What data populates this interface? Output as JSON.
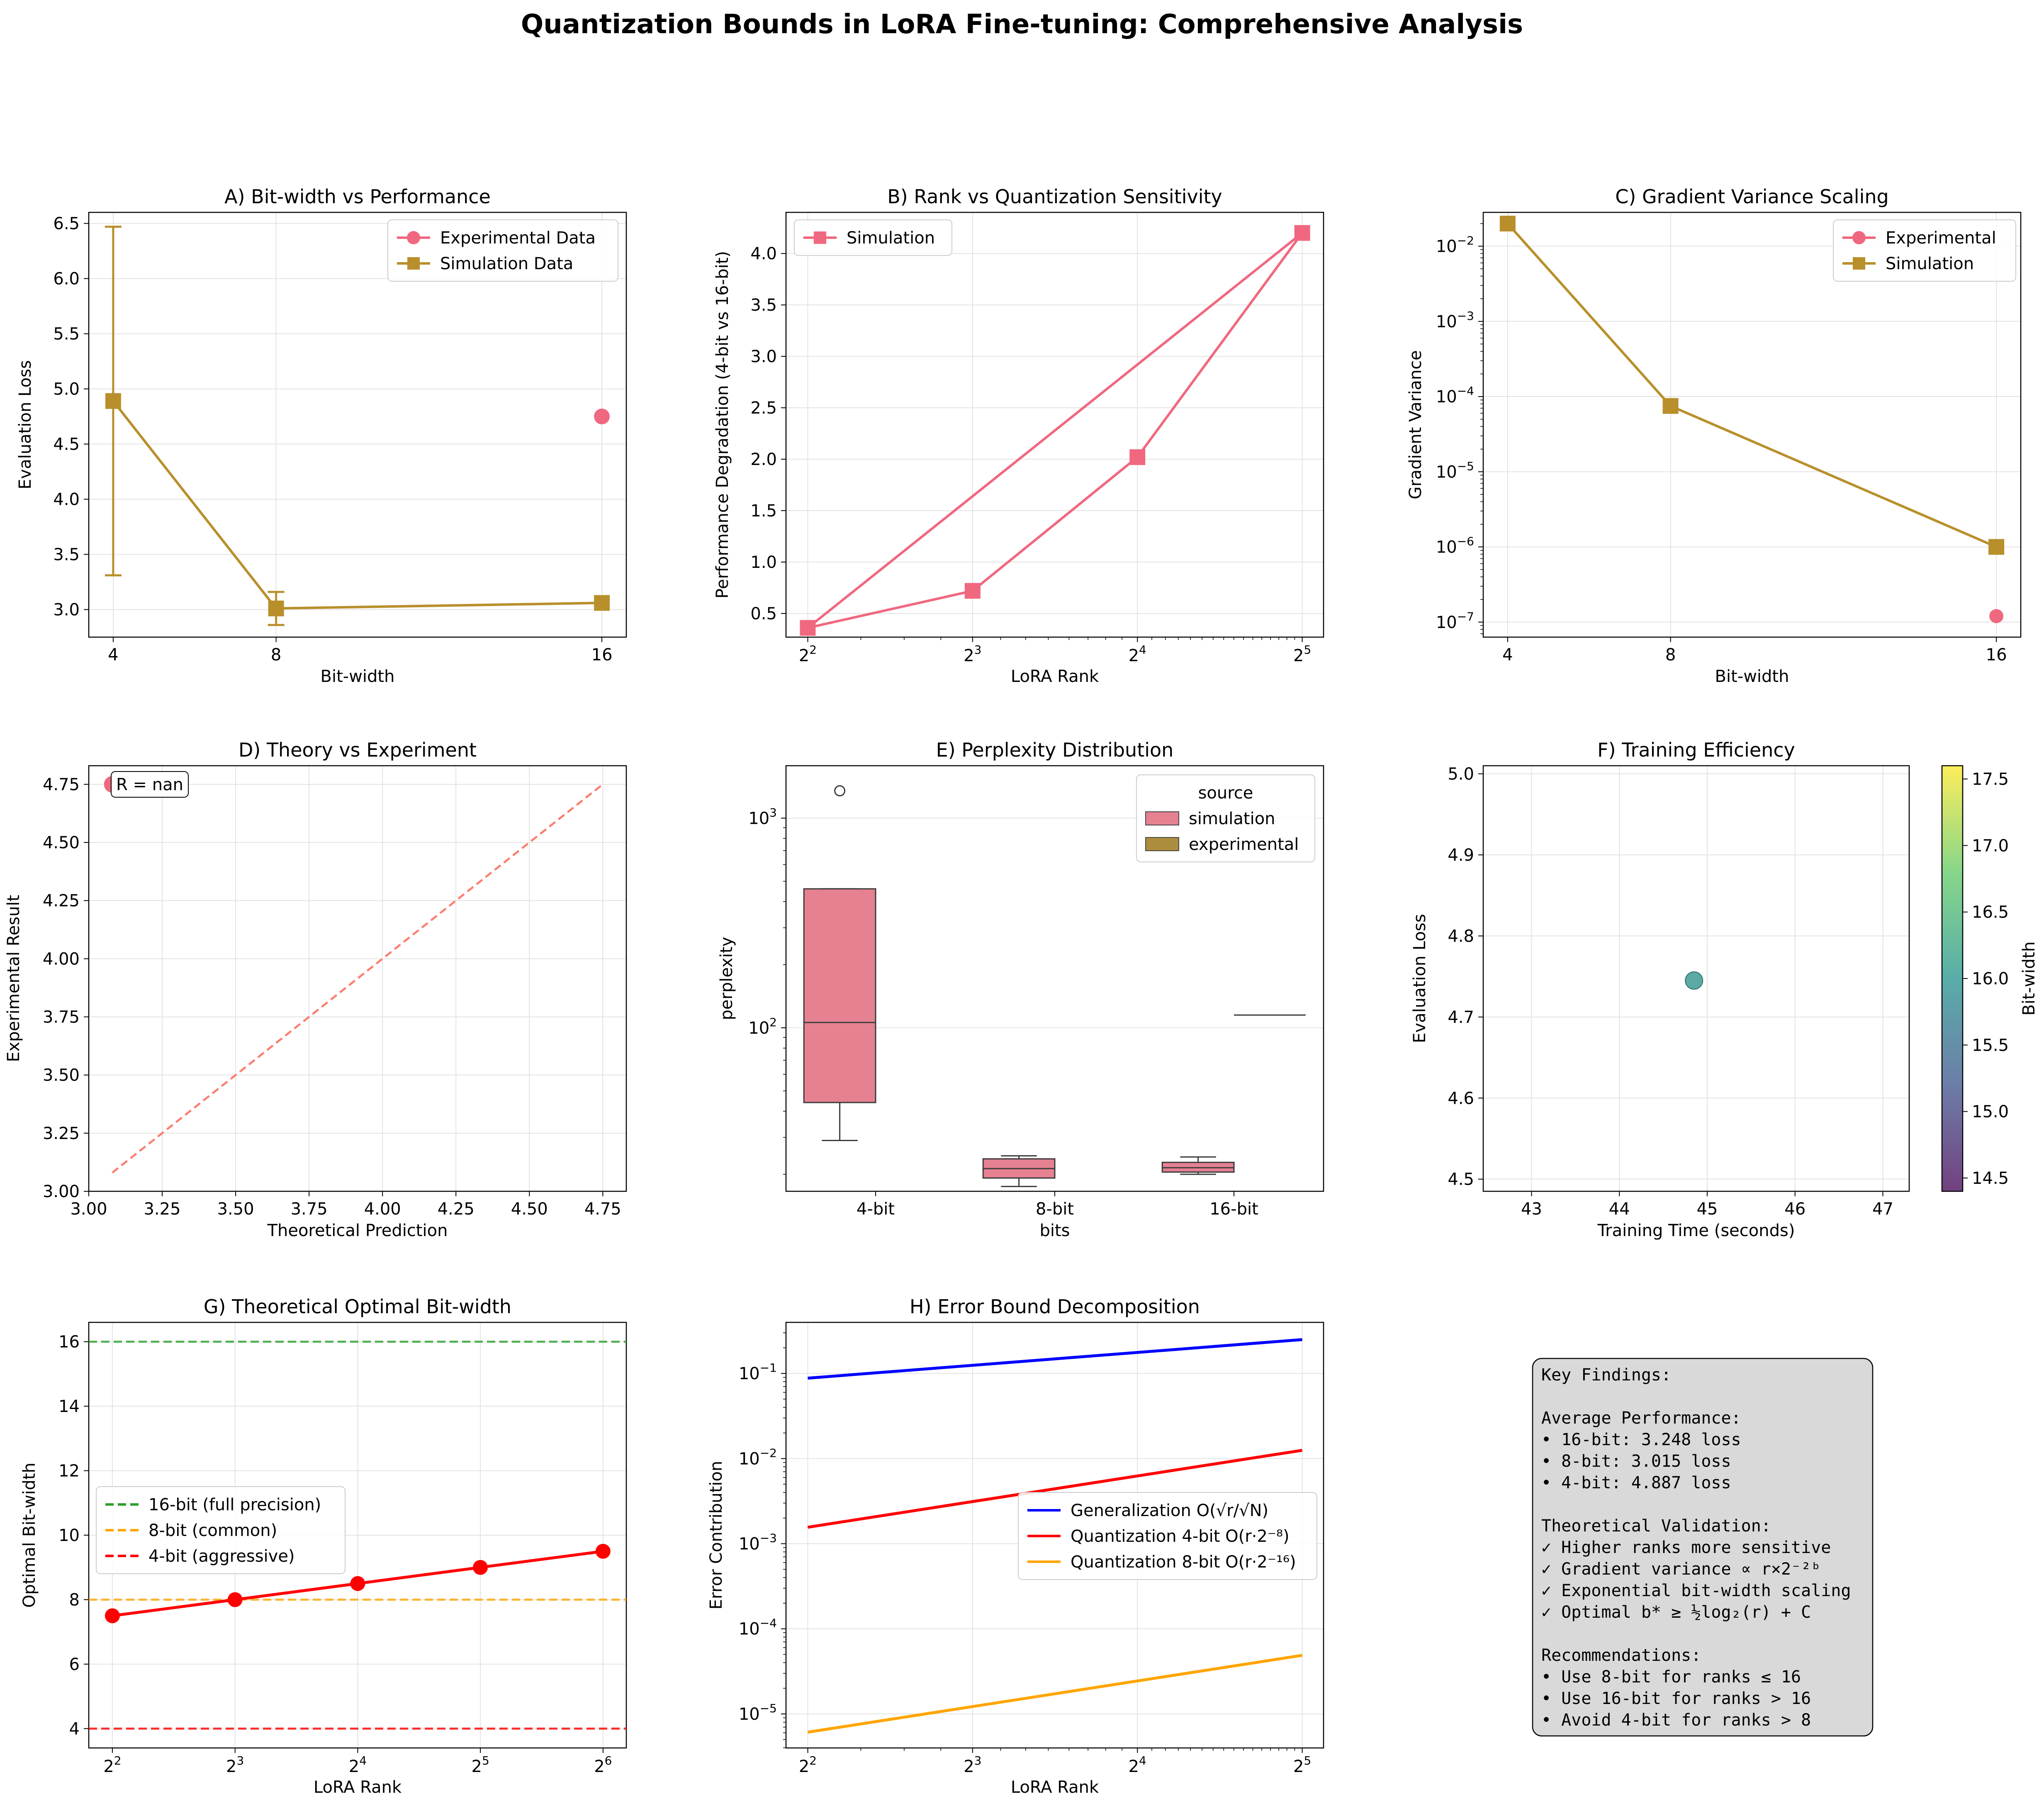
{
  "figure": {
    "suptitle": "Quantization Bounds in LoRA Fine-tuning: Comprehensive Analysis"
  },
  "colors": {
    "pink": "#f0687f",
    "gold": "#b88f2b",
    "red": "#ff0000",
    "blue": "#0000ff",
    "orange": "#ffa500",
    "green": "#2ca02c"
  },
  "chart_data": [
    {
      "id": "A",
      "type": "line",
      "title": "A) Bit-width vs Performance",
      "xlabel": "Bit-width",
      "ylabel": "Evaluation Loss",
      "xscale": "linear",
      "xlim": [
        3.4,
        16.6
      ],
      "ylim": [
        2.75,
        6.6
      ],
      "xticks": [
        4,
        8,
        16
      ],
      "xtick_labels": [
        "4",
        "8",
        "16"
      ],
      "yticks": [
        3.0,
        3.5,
        4.0,
        4.5,
        5.0,
        5.5,
        6.0,
        6.5
      ],
      "ytick_labels": [
        "3.0",
        "3.5",
        "4.0",
        "4.5",
        "5.0",
        "5.5",
        "6.0",
        "6.5"
      ],
      "legend": "top-right",
      "grid": true,
      "series": [
        {
          "name": "Experimental Data",
          "color": "#f0687f",
          "marker": "circle",
          "line": false,
          "x": [
            16
          ],
          "y": [
            4.75
          ]
        },
        {
          "name": "Simulation Data",
          "color": "#b88f2b",
          "marker": "square",
          "line": true,
          "x": [
            4,
            8,
            16
          ],
          "y": [
            4.89,
            3.01,
            3.06
          ],
          "err": [
            1.58,
            0.15,
            0.0
          ]
        }
      ]
    },
    {
      "id": "B",
      "type": "line",
      "title": "B) Rank vs Quantization Sensitivity",
      "xlabel": "LoRA Rank",
      "ylabel": "Performance Degradation (4-bit vs 16-bit)",
      "xscale": "log2",
      "xlim": [
        3.65,
        35.0
      ],
      "ylim": [
        0.27,
        4.4
      ],
      "xticks": [
        4,
        8,
        16,
        32
      ],
      "xtick_labels": [
        "2",
        "2",
        "2",
        "2"
      ],
      "xtick_exponents": [
        "2",
        "3",
        "4",
        "5"
      ],
      "yticks": [
        0.5,
        1.0,
        1.5,
        2.0,
        2.5,
        3.0,
        3.5,
        4.0
      ],
      "ytick_labels": [
        "0.5",
        "1.0",
        "1.5",
        "2.0",
        "2.5",
        "3.0",
        "3.5",
        "4.0"
      ],
      "legend": "top-left",
      "grid": true,
      "series": [
        {
          "name": "Simulation",
          "color": "#f0687f",
          "marker": "square",
          "line": true,
          "x": [
            4,
            8,
            16,
            32,
            4
          ],
          "y": [
            0.36,
            0.72,
            2.02,
            4.2,
            0.36
          ],
          "markers_x": [
            4,
            8,
            16,
            32
          ],
          "markers_y": [
            0.36,
            0.72,
            2.02,
            4.2
          ]
        }
      ]
    },
    {
      "id": "C",
      "type": "line",
      "title": "C) Gradient Variance Scaling",
      "xlabel": "Bit-width",
      "ylabel": "Gradient Variance",
      "xscale": "linear",
      "yscale": "log10",
      "xlim": [
        3.4,
        16.6
      ],
      "ylim_log10": [
        -7.2,
        -1.55
      ],
      "xticks": [
        4,
        8,
        16
      ],
      "xtick_labels": [
        "4",
        "8",
        "16"
      ],
      "yticks_log10": [
        -7,
        -6,
        -5,
        -4,
        -3,
        -2
      ],
      "ytick_labels": [
        "10",
        "10",
        "10",
        "10",
        "10",
        "10"
      ],
      "ytick_exponents": [
        "−7",
        "−6",
        "−5",
        "−4",
        "−3",
        "−2"
      ],
      "legend": "top-right",
      "grid": true,
      "series": [
        {
          "name": "Experimental",
          "color": "#f0687f",
          "marker": "circle",
          "line": false,
          "x": [
            16
          ],
          "y": [
            1.2e-07
          ]
        },
        {
          "name": "Simulation",
          "color": "#b88f2b",
          "marker": "square",
          "line": true,
          "x": [
            4,
            8,
            16
          ],
          "y": [
            0.02,
            7.5e-05,
            1e-06
          ]
        }
      ]
    },
    {
      "id": "D",
      "type": "scatter",
      "title": "D) Theory vs Experiment",
      "xlabel": "Theoretical Prediction",
      "ylabel": "Experimental Result",
      "xlim": [
        3.0,
        4.83
      ],
      "ylim": [
        3.0,
        4.83
      ],
      "xticks": [
        3.0,
        3.25,
        3.5,
        3.75,
        4.0,
        4.25,
        4.5,
        4.75
      ],
      "xtick_labels": [
        "3.00",
        "3.25",
        "3.50",
        "3.75",
        "4.00",
        "4.25",
        "4.50",
        "4.75"
      ],
      "yticks": [
        3.0,
        3.25,
        3.5,
        3.75,
        4.0,
        4.25,
        4.5,
        4.75
      ],
      "ytick_labels": [
        "3.00",
        "3.25",
        "3.50",
        "3.75",
        "4.00",
        "4.25",
        "4.50",
        "4.75"
      ],
      "annotation": "R = nan",
      "grid": true,
      "points": {
        "color": "#f0687f",
        "x": [
          3.08
        ],
        "y": [
          4.75
        ]
      },
      "reference_line": {
        "color": "#fa8072",
        "x": [
          3.08,
          4.75
        ],
        "y": [
          3.08,
          4.75
        ]
      }
    },
    {
      "id": "E",
      "type": "box",
      "title": "E) Perplexity Distribution",
      "xlabel": "bits",
      "ylabel": "perplexity",
      "yscale": "log10",
      "ylim_log10": [
        1.22,
        3.25
      ],
      "categories": [
        "4-bit",
        "8-bit",
        "16-bit"
      ],
      "yticks_log10": [
        2,
        3
      ],
      "ytick_labels": [
        "10",
        "10"
      ],
      "ytick_exponents": [
        "2",
        "3"
      ],
      "legend_title": "source",
      "legend": "top-right",
      "grid": true,
      "series": [
        {
          "name": "simulation",
          "color": "#e68192"
        },
        {
          "name": "experimental",
          "color": "#ab8d3d"
        }
      ],
      "boxes": [
        {
          "category": "4-bit",
          "source": "simulation",
          "whisker_low": 29.0,
          "q1": 44.0,
          "median": 106.0,
          "q3": 460.0,
          "whisker_high": 460.0,
          "outliers": [
            1350
          ]
        },
        {
          "category": "8-bit",
          "source": "simulation",
          "whisker_low": 17.5,
          "q1": 19.2,
          "median": 21.3,
          "q3": 23.7,
          "whisker_high": 24.5
        },
        {
          "category": "16-bit",
          "source": "simulation",
          "whisker_low": 20.0,
          "q1": 20.5,
          "median": 21.5,
          "q3": 22.8,
          "whisker_high": 24.2
        },
        {
          "category": "16-bit",
          "source": "experimental",
          "median": 115.0
        }
      ]
    },
    {
      "id": "F",
      "type": "scatter",
      "title": "F) Training Efficiency",
      "xlabel": "Training Time (seconds)",
      "ylabel": "Evaluation Loss",
      "xlim": [
        42.45,
        47.3
      ],
      "ylim": [
        4.485,
        5.01
      ],
      "xticks": [
        43,
        44,
        45,
        46,
        47
      ],
      "xtick_labels": [
        "43",
        "44",
        "45",
        "46",
        "47"
      ],
      "yticks": [
        4.5,
        4.6,
        4.7,
        4.8,
        4.9,
        5.0
      ],
      "ytick_labels": [
        "4.5",
        "4.6",
        "4.7",
        "4.8",
        "4.9",
        "5.0"
      ],
      "grid": true,
      "points": {
        "x": [
          44.85
        ],
        "y": [
          4.745
        ],
        "c": [
          16.0
        ],
        "color": "#3f9a96"
      },
      "colorbar": {
        "label": "Bit-width",
        "range": [
          14.4,
          17.6
        ],
        "ticks": [
          14.5,
          15.0,
          15.5,
          16.0,
          16.5,
          17.0,
          17.5
        ],
        "tick_labels": [
          "14.5",
          "15.0",
          "15.5",
          "16.0",
          "16.5",
          "17.0",
          "17.5"
        ],
        "colormap": "viridis"
      }
    },
    {
      "id": "G",
      "type": "line",
      "title": "G) Theoretical Optimal Bit-width",
      "xlabel": "LoRA Rank",
      "ylabel": "Optimal Bit-width",
      "xscale": "log2",
      "xlim": [
        3.5,
        73.0
      ],
      "ylim": [
        3.4,
        16.6
      ],
      "xticks": [
        4,
        8,
        16,
        32,
        64
      ],
      "xtick_labels": [
        "2",
        "2",
        "2",
        "2",
        "2"
      ],
      "xtick_exponents": [
        "2",
        "3",
        "4",
        "5",
        "6"
      ],
      "yticks": [
        4,
        6,
        8,
        10,
        12,
        14,
        16
      ],
      "ytick_labels": [
        "4",
        "6",
        "8",
        "10",
        "12",
        "14",
        "16"
      ],
      "legend": "center-left",
      "grid": true,
      "series": [
        {
          "name": "",
          "color": "#ff0000",
          "marker": "circle",
          "line": true,
          "x": [
            4,
            8,
            16,
            32,
            64
          ],
          "y": [
            7.5,
            8.0,
            8.5,
            9.0,
            9.5
          ]
        }
      ],
      "hlines": [
        {
          "name": "16-bit (full precision)",
          "y": 16,
          "color": "#2ca02c"
        },
        {
          "name": "8-bit (common)",
          "y": 8,
          "color": "#ffa500"
        },
        {
          "name": "4-bit (aggressive)",
          "y": 4,
          "color": "#ff0000"
        }
      ]
    },
    {
      "id": "H",
      "type": "line",
      "title": "H) Error Bound Decomposition",
      "xlabel": "LoRA Rank",
      "ylabel": "Error Contribution",
      "xscale": "log2",
      "yscale": "log10",
      "xlim": [
        3.65,
        35.0
      ],
      "ylim_log10": [
        -5.4,
        -0.4
      ],
      "xticks": [
        4,
        8,
        16,
        32
      ],
      "xtick_labels": [
        "2",
        "2",
        "2",
        "2"
      ],
      "xtick_exponents": [
        "2",
        "3",
        "4",
        "5"
      ],
      "yticks_log10": [
        -5,
        -4,
        -3,
        -2,
        -1
      ],
      "ytick_labels": [
        "10",
        "10",
        "10",
        "10",
        "10"
      ],
      "ytick_exponents": [
        "−5",
        "−4",
        "−3",
        "−2",
        "−1"
      ],
      "legend": "center-right",
      "grid": true,
      "series": [
        {
          "name": "Generalization O(√r/√N)",
          "color": "#0000ff",
          "x": [
            4,
            32
          ],
          "y": [
            0.088,
            0.25
          ]
        },
        {
          "name": "Quantization 4-bit O(r·2⁻⁸)",
          "color": "#ff0000",
          "x": [
            4,
            32
          ],
          "y": [
            0.00156,
            0.0125
          ]
        },
        {
          "name": "Quantization 8-bit O(r·2⁻¹⁶)",
          "color": "#ffa500",
          "x": [
            4,
            32
          ],
          "y": [
            6.1e-06,
            4.88e-05
          ]
        }
      ]
    }
  ],
  "summary_box": {
    "lines": [
      "Key Findings:",
      "",
      "Average Performance:",
      "• 16-bit: 3.248 loss",
      "• 8-bit:  3.015 loss",
      "• 4-bit:  4.887 loss",
      "",
      "Theoretical Validation:",
      "✓ Higher ranks more sensitive",
      "✓ Gradient variance ∝ r×2⁻²ᵇ",
      "✓ Exponential bit-width scaling",
      "✓ Optimal b* ≥ ½log₂(r) + C",
      "",
      "Recommendations:",
      "• Use 8-bit for ranks ≤ 16",
      "• Use 16-bit for ranks > 16",
      "• Avoid 4-bit for ranks > 8"
    ]
  }
}
